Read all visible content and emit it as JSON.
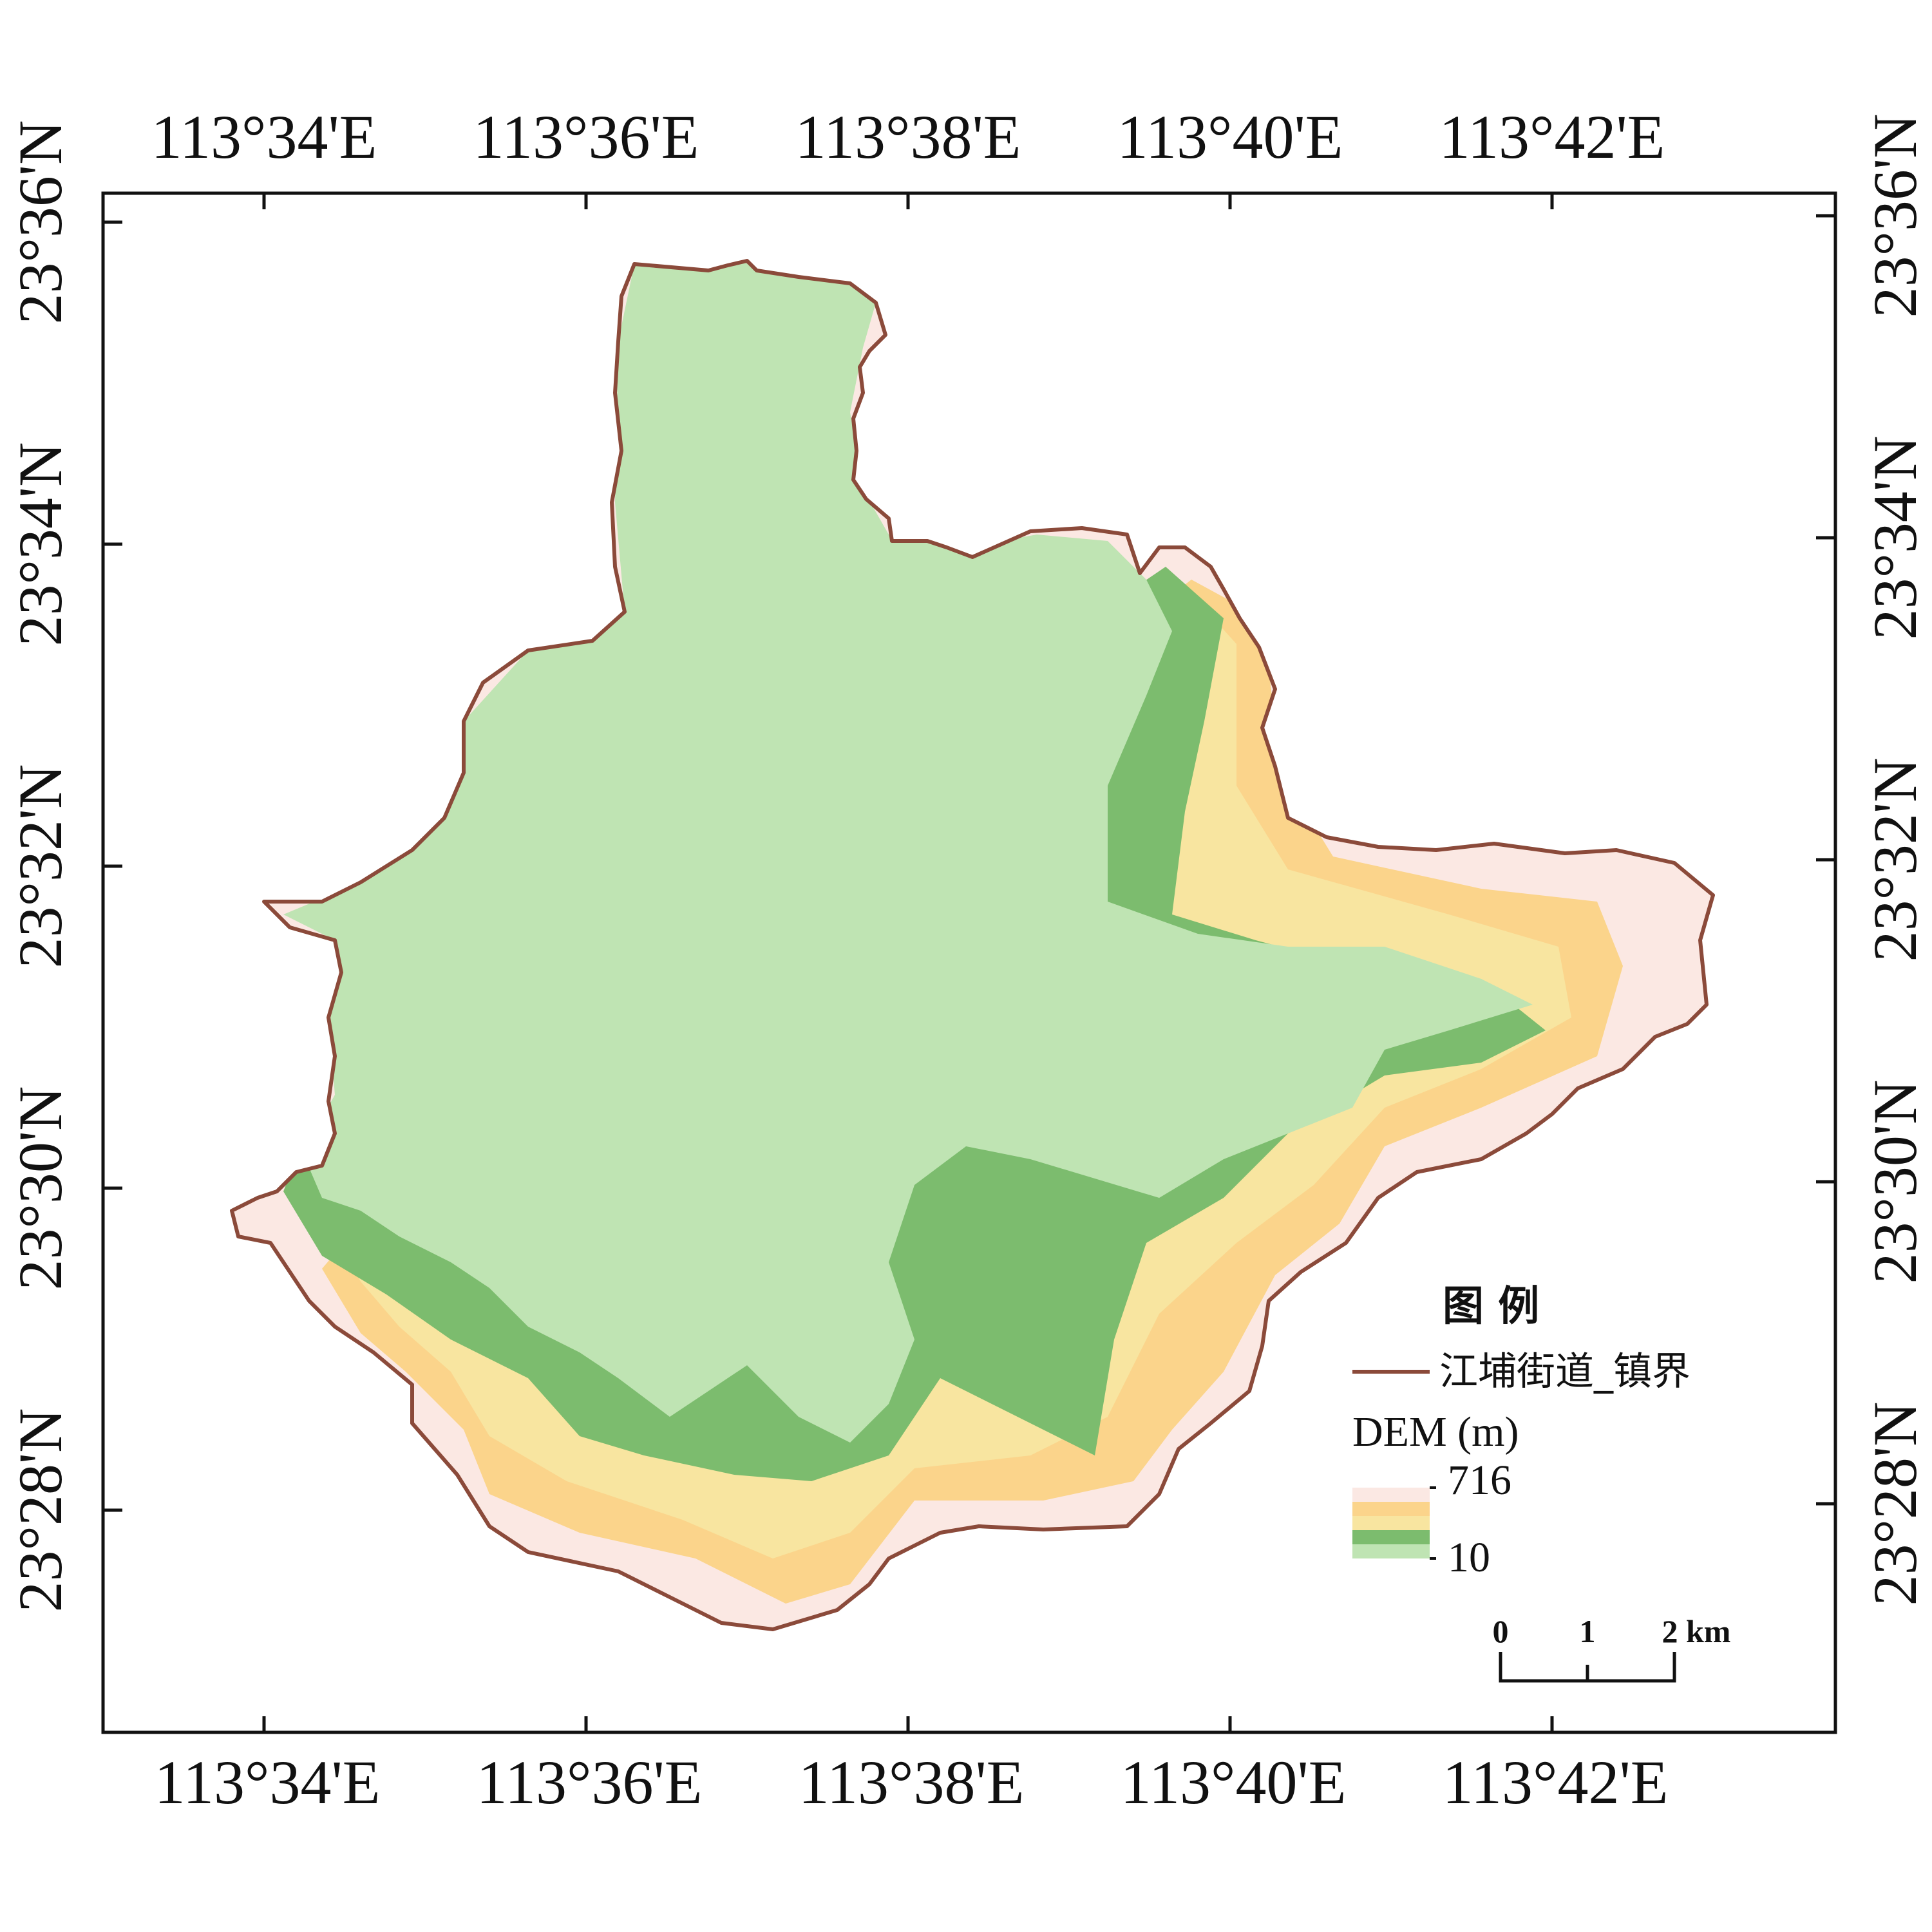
{
  "map": {
    "top_longitudes": [
      "113°34'E",
      "113°36'E",
      "113°38'E",
      "113°40'E",
      "113°42'E"
    ],
    "bottom_longitudes": [
      "113°34'E",
      "113°36'E",
      "113°38'E",
      "113°40'E",
      "113°42'E"
    ],
    "left_latitudes": [
      "23°36'N",
      "23°34'N",
      "23°32'N",
      "23°30'N",
      "23°28'N"
    ],
    "right_latitudes": [
      "23°36'N",
      "23°34'N",
      "23°32'N",
      "23°30'N",
      "23°28'N"
    ]
  },
  "legend": {
    "title": "图 例",
    "boundary_label": "江埔街道_镇界",
    "dem_title": "DEM (m)",
    "dem_max": "716",
    "dem_min": "10"
  },
  "scale_bar": {
    "labels": [
      "0",
      "1",
      "2"
    ],
    "unit": "km"
  },
  "colors": {
    "boundary": "#8b4a3a",
    "elev_lowest": "#bfe4b3",
    "elev_low": "#7cbc6e",
    "elev_mid": "#f8e5a0",
    "elev_high": "#fbd48b",
    "elev_highest": "#fbe8e3"
  }
}
